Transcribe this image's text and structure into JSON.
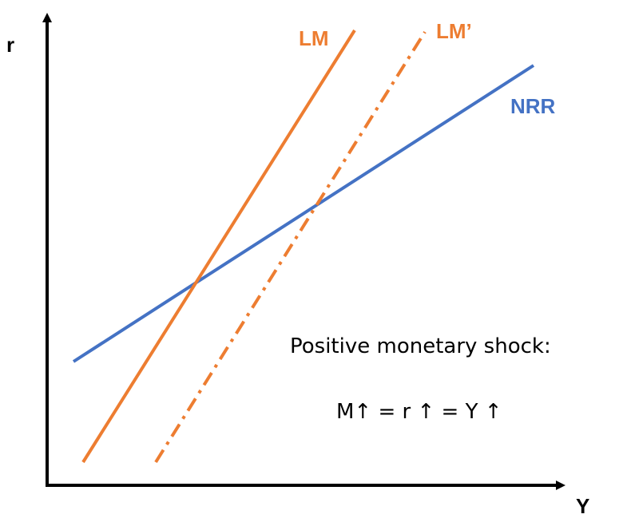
{
  "axes": {
    "x_label": "Y",
    "y_label": "r"
  },
  "curves": {
    "lm": {
      "label": "LM",
      "color": "#ED7D31",
      "style": "solid"
    },
    "lm_prime": {
      "label": "LM’",
      "color": "#ED7D31",
      "style": "dash-dot"
    },
    "nrr": {
      "label": "NRR",
      "color": "#4472C4",
      "style": "solid"
    }
  },
  "annotation": {
    "line1": "Positive monetary shock:",
    "line2": "M↑ = r ↑ = Y ↑"
  }
}
